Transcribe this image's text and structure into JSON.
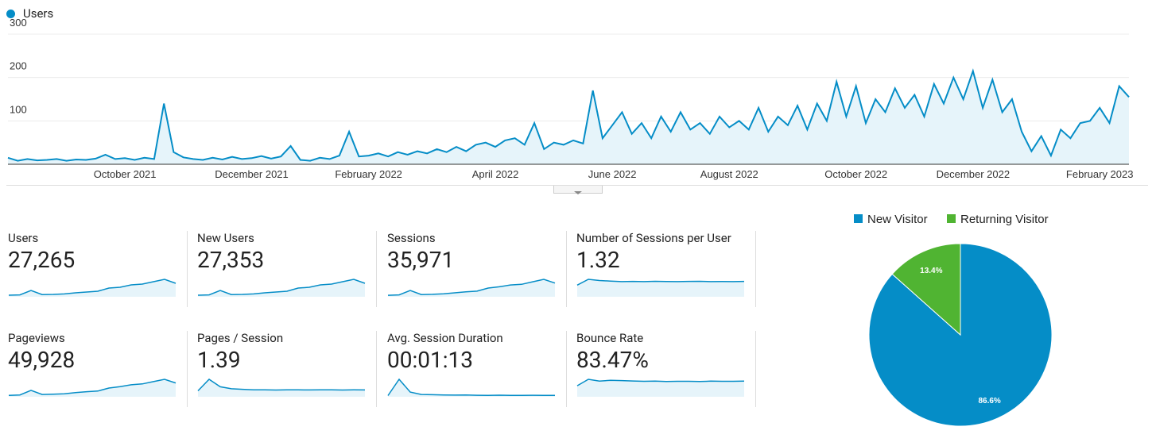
{
  "chart_data": [
    {
      "type": "line",
      "legend": "Users",
      "color": "#058dc7",
      "fill": "#e6f4fa",
      "ylim": [
        0,
        300
      ],
      "yticks": [
        100,
        200,
        300
      ],
      "grid": true,
      "categories": [
        null,
        null,
        null,
        null,
        null,
        null,
        null,
        null,
        null,
        null,
        null,
        null,
        "October 2021",
        null,
        null,
        null,
        null,
        null,
        null,
        null,
        null,
        null,
        null,
        null,
        null,
        "December 2021",
        null,
        null,
        null,
        null,
        null,
        null,
        null,
        null,
        null,
        null,
        null,
        "February 2022",
        null,
        null,
        null,
        null,
        null,
        null,
        null,
        null,
        null,
        null,
        null,
        null,
        "April 2022",
        null,
        null,
        null,
        null,
        null,
        null,
        null,
        null,
        null,
        null,
        null,
        "June 2022",
        null,
        null,
        null,
        null,
        null,
        null,
        null,
        null,
        null,
        null,
        null,
        "August 2022",
        null,
        null,
        null,
        null,
        null,
        null,
        null,
        null,
        null,
        null,
        null,
        null,
        "October 2022",
        null,
        null,
        null,
        null,
        null,
        null,
        null,
        null,
        null,
        null,
        null,
        "December 2022",
        null,
        null,
        null,
        null,
        null,
        null,
        null,
        null,
        null,
        null,
        null,
        null,
        "February 2023",
        null,
        null,
        null
      ],
      "values": [
        15,
        8,
        12,
        9,
        10,
        12,
        8,
        11,
        10,
        13,
        22,
        12,
        14,
        10,
        15,
        12,
        140,
        28,
        16,
        12,
        10,
        15,
        11,
        17,
        12,
        14,
        19,
        13,
        18,
        42,
        10,
        8,
        15,
        12,
        20,
        75,
        18,
        20,
        25,
        18,
        28,
        22,
        30,
        25,
        35,
        28,
        40,
        30,
        45,
        50,
        40,
        55,
        60,
        45,
        95,
        35,
        50,
        45,
        55,
        48,
        170,
        60,
        90,
        120,
        70,
        95,
        60,
        110,
        75,
        120,
        80,
        95,
        70,
        110,
        85,
        100,
        80,
        130,
        75,
        110,
        90,
        135,
        80,
        140,
        100,
        190,
        110,
        180,
        95,
        150,
        120,
        175,
        130,
        160,
        110,
        185,
        140,
        200,
        150,
        215,
        130,
        195,
        120,
        150,
        75,
        30,
        65,
        20,
        80,
        60,
        95,
        100,
        130,
        95,
        180,
        155
      ]
    },
    {
      "type": "pie",
      "categories": [
        "New Visitor",
        "Returning Visitor"
      ],
      "values": [
        86.6,
        13.4
      ],
      "value_labels": [
        "86.6%",
        "13.4%"
      ],
      "colors": [
        "#058dc7",
        "#50b432"
      ]
    }
  ],
  "metrics": [
    {
      "label": "Users",
      "value": "27,265",
      "sparkline": [
        10,
        12,
        40,
        14,
        15,
        18,
        25,
        30,
        35,
        55,
        60,
        75,
        80,
        95,
        110,
        85
      ]
    },
    {
      "label": "New Users",
      "value": "27,353",
      "sparkline": [
        10,
        12,
        40,
        14,
        15,
        18,
        25,
        30,
        35,
        55,
        60,
        75,
        80,
        95,
        110,
        85
      ]
    },
    {
      "label": "Sessions",
      "value": "35,971",
      "sparkline": [
        12,
        15,
        50,
        18,
        20,
        24,
        32,
        40,
        45,
        70,
        80,
        95,
        100,
        120,
        140,
        110
      ]
    },
    {
      "label": "Number of Sessions per User",
      "value": "1.32",
      "sparkline": [
        1.0,
        1.5,
        1.4,
        1.35,
        1.3,
        1.32,
        1.3,
        1.33,
        1.31,
        1.3,
        1.32,
        1.33,
        1.3,
        1.31,
        1.3,
        1.32
      ]
    },
    {
      "label": "Pageviews",
      "value": "49,928",
      "sparkline": [
        15,
        20,
        70,
        25,
        28,
        33,
        45,
        55,
        62,
        95,
        110,
        130,
        140,
        165,
        190,
        150
      ]
    },
    {
      "label": "Pages / Session",
      "value": "1.39",
      "sparkline": [
        1.2,
        3.5,
        2.0,
        1.6,
        1.5,
        1.4,
        1.4,
        1.35,
        1.4,
        1.38,
        1.37,
        1.4,
        1.38,
        1.36,
        1.38,
        1.37
      ]
    },
    {
      "label": "Avg. Session Duration",
      "value": "00:01:13",
      "sparkline": [
        20,
        300,
        80,
        40,
        35,
        30,
        28,
        30,
        26,
        25,
        27,
        25,
        24,
        26,
        25,
        24
      ]
    },
    {
      "label": "Bounce Rate",
      "value": "83.47%",
      "sparkline": [
        60,
        95,
        85,
        90,
        88,
        86,
        84,
        85,
        83,
        84,
        84,
        83,
        85,
        84,
        84,
        85
      ]
    }
  ]
}
